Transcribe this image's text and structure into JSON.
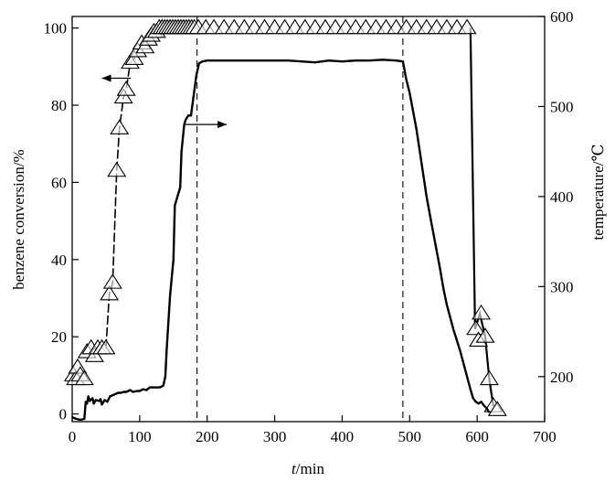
{
  "chart_data": {
    "type": "line",
    "title": "",
    "xlabel_italic": "t",
    "xlabel_rest": "/min",
    "ylabel_left": "benzene conversion/%",
    "ylabel_right": "temperature/℃",
    "xlim": [
      0,
      700
    ],
    "ylim_left": [
      -2,
      103
    ],
    "ylim_right": [
      150,
      600
    ],
    "x_ticks": [
      0,
      100,
      200,
      300,
      400,
      500,
      600,
      700
    ],
    "y_ticks_left": [
      0,
      20,
      40,
      60,
      80,
      100
    ],
    "y_ticks_right": [
      200,
      300,
      400,
      500,
      600
    ],
    "grid": false,
    "vlines_x": [
      185,
      490
    ],
    "series": [
      {
        "marker": "triangle",
        "axis": "left",
        "points": [
          [
            2,
            10
          ],
          [
            5,
            9
          ],
          [
            8,
            12
          ],
          [
            12,
            10
          ],
          [
            18,
            9
          ],
          [
            22,
            16
          ],
          [
            28,
            17
          ],
          [
            33,
            15
          ],
          [
            38,
            17
          ],
          [
            44,
            17
          ],
          [
            50,
            17
          ],
          [
            55,
            31
          ],
          [
            60,
            34
          ],
          [
            66,
            63
          ],
          [
            70,
            74
          ],
          [
            76,
            82
          ],
          [
            80,
            84
          ],
          [
            86,
            91
          ],
          [
            92,
            92
          ],
          [
            97,
            94
          ],
          [
            103,
            96
          ],
          [
            108,
            95
          ],
          [
            113,
            97
          ],
          [
            117,
            98
          ],
          [
            121,
            99
          ],
          [
            125,
            99
          ],
          [
            129,
            100
          ],
          [
            133,
            100
          ],
          [
            137,
            100
          ],
          [
            141,
            100
          ],
          [
            145,
            100
          ],
          [
            149,
            100
          ],
          [
            153,
            100
          ],
          [
            157,
            100
          ],
          [
            161,
            100
          ],
          [
            165,
            100
          ],
          [
            169,
            100
          ],
          [
            173,
            100
          ],
          [
            177,
            100
          ],
          [
            181,
            100
          ],
          [
            187,
            100
          ],
          [
            198,
            100
          ],
          [
            210,
            100
          ],
          [
            225,
            100
          ],
          [
            240,
            100
          ],
          [
            255,
            100
          ],
          [
            270,
            100
          ],
          [
            285,
            100
          ],
          [
            300,
            100
          ],
          [
            315,
            100
          ],
          [
            330,
            100
          ],
          [
            345,
            100
          ],
          [
            360,
            100
          ],
          [
            375,
            100
          ],
          [
            390,
            100
          ],
          [
            405,
            100
          ],
          [
            420,
            100
          ],
          [
            435,
            100
          ],
          [
            450,
            100
          ],
          [
            465,
            100
          ],
          [
            480,
            100
          ],
          [
            495,
            100
          ],
          [
            510,
            100
          ],
          [
            525,
            100
          ],
          [
            540,
            100
          ],
          [
            555,
            100
          ],
          [
            570,
            100
          ],
          [
            585,
            100
          ],
          [
            598,
            22
          ],
          [
            602,
            19
          ],
          [
            606,
            26
          ],
          [
            612,
            20
          ],
          [
            618,
            9
          ],
          [
            624,
            2
          ],
          [
            630,
            1
          ]
        ],
        "connecting_line": [
          [
            50,
            17
          ],
          [
            55,
            31
          ],
          [
            60,
            34
          ],
          [
            66,
            63
          ],
          [
            70,
            74
          ],
          [
            76,
            82
          ],
          [
            80,
            84
          ],
          [
            86,
            91
          ],
          [
            92,
            92
          ],
          [
            97,
            94
          ],
          [
            103,
            96
          ],
          [
            113,
            97
          ],
          [
            125,
            99
          ],
          [
            135,
            100
          ]
        ],
        "drop_line": [
          [
            590,
            100
          ],
          [
            597,
            22
          ],
          [
            604,
            26
          ],
          [
            612,
            20
          ],
          [
            618,
            9
          ],
          [
            624,
            2
          ]
        ]
      },
      {
        "marker": "none",
        "axis": "right",
        "points": [
          [
            0,
            155
          ],
          [
            6,
            153
          ],
          [
            12,
            152
          ],
          [
            18,
            153
          ],
          [
            20,
            172
          ],
          [
            22,
            170
          ],
          [
            24,
            178
          ],
          [
            26,
            173
          ],
          [
            30,
            176
          ],
          [
            32,
            170
          ],
          [
            35,
            174
          ],
          [
            40,
            173
          ],
          [
            42,
            175
          ],
          [
            44,
            169
          ],
          [
            48,
            174
          ],
          [
            52,
            172
          ],
          [
            56,
            178
          ],
          [
            62,
            180
          ],
          [
            68,
            182
          ],
          [
            72,
            182
          ],
          [
            76,
            183
          ],
          [
            80,
            183
          ],
          [
            86,
            185
          ],
          [
            90,
            183
          ],
          [
            96,
            184
          ],
          [
            100,
            184
          ],
          [
            105,
            186
          ],
          [
            110,
            185
          ],
          [
            115,
            188
          ],
          [
            125,
            188
          ],
          [
            130,
            188
          ],
          [
            135,
            190
          ],
          [
            138,
            200
          ],
          [
            140,
            230
          ],
          [
            145,
            290
          ],
          [
            150,
            330
          ],
          [
            152,
            390
          ],
          [
            156,
            400
          ],
          [
            160,
            410
          ],
          [
            162,
            450
          ],
          [
            166,
            480
          ],
          [
            168,
            485
          ],
          [
            172,
            490
          ],
          [
            176,
            490
          ],
          [
            180,
            512
          ],
          [
            184,
            535
          ],
          [
            188,
            548
          ],
          [
            193,
            550
          ],
          [
            200,
            551
          ],
          [
            210,
            551
          ],
          [
            220,
            551
          ],
          [
            240,
            551
          ],
          [
            260,
            551
          ],
          [
            280,
            551
          ],
          [
            300,
            551
          ],
          [
            320,
            551
          ],
          [
            340,
            550
          ],
          [
            360,
            549
          ],
          [
            380,
            551
          ],
          [
            400,
            550
          ],
          [
            420,
            551
          ],
          [
            440,
            551
          ],
          [
            460,
            552
          ],
          [
            480,
            551
          ],
          [
            490,
            550
          ],
          [
            495,
            530
          ],
          [
            500,
            515
          ],
          [
            505,
            495
          ],
          [
            510,
            475
          ],
          [
            515,
            450
          ],
          [
            520,
            425
          ],
          [
            525,
            400
          ],
          [
            530,
            380
          ],
          [
            535,
            360
          ],
          [
            540,
            340
          ],
          [
            545,
            320
          ],
          [
            550,
            298
          ],
          [
            555,
            280
          ],
          [
            560,
            266
          ],
          [
            565,
            252
          ],
          [
            570,
            240
          ],
          [
            575,
            228
          ],
          [
            580,
            214
          ],
          [
            585,
            200
          ],
          [
            590,
            186
          ],
          [
            594,
            176
          ],
          [
            598,
            172
          ],
          [
            602,
            170
          ],
          [
            606,
            172
          ],
          [
            610,
            168
          ],
          [
            614,
            165
          ],
          [
            618,
            160
          ]
        ]
      }
    ],
    "annotations": [
      {
        "type": "arrow",
        "direction": "left",
        "from": [
          87,
          87
        ],
        "to": [
          44,
          87
        ],
        "axis": "left"
      },
      {
        "type": "arrow",
        "direction": "right",
        "from": [
          165,
          75
        ],
        "to": [
          229,
          75
        ],
        "axis": "left"
      }
    ]
  }
}
